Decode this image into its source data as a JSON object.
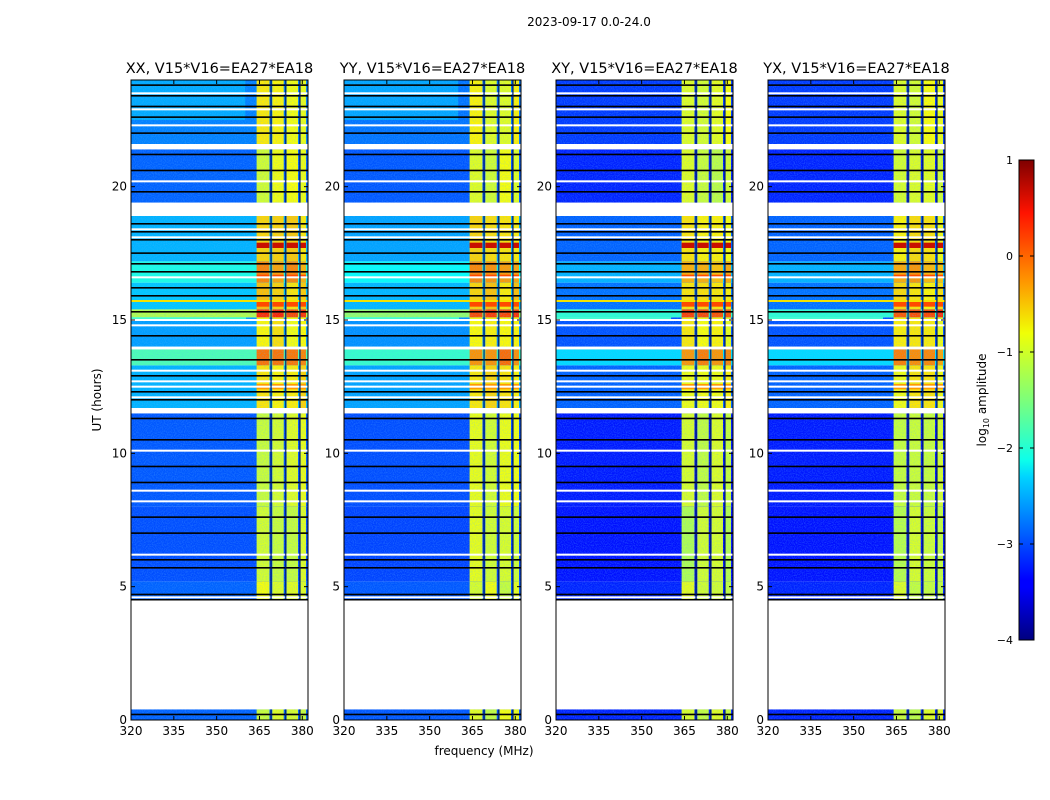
{
  "figure": {
    "suptitle": "2023-09-17 0.0-24.0",
    "xlabel": "frequency (MHz)",
    "ylabel": "UT (hours)"
  },
  "chart_data": {
    "type": "heatmap",
    "x_range": [
      320,
      382
    ],
    "y_range": [
      0,
      24
    ],
    "x_ticks": [
      320,
      335,
      350,
      365,
      380
    ],
    "y_ticks": [
      0,
      5,
      10,
      15,
      20
    ],
    "data_gaps_hours": [
      [
        0.4,
        4.5
      ],
      [
        18.9,
        19.4
      ],
      [
        21.4,
        21.6
      ],
      [
        13.9,
        14.0
      ],
      [
        11.5,
        11.7
      ]
    ],
    "bright_channels_mhz": [
      [
        364,
        368.5
      ],
      [
        369.5,
        373.5
      ],
      [
        374.5,
        378.5
      ],
      [
        379.3,
        381.3
      ]
    ],
    "panels": [
      {
        "title": "XX, V15*V16=EA27*EA18",
        "level": 1.0
      },
      {
        "title": "YY, V15*V16=EA27*EA18",
        "level": 0.95
      },
      {
        "title": "XY, V15*V16=EA27*EA18",
        "level": 0.8
      },
      {
        "title": "YX, V15*V16=EA27*EA18",
        "level": 0.8
      }
    ],
    "colorbar": {
      "label": "log10 amplitude",
      "label_base": "log",
      "label_sub": "10",
      "label_rest": " amplitude",
      "range": [
        -4,
        1
      ],
      "ticks": [
        1,
        0,
        -1,
        -2,
        -3,
        -4
      ],
      "tick_labels": [
        "1",
        "0",
        "−1",
        "−2",
        "−3",
        "−4"
      ],
      "colormap": "jet"
    }
  }
}
